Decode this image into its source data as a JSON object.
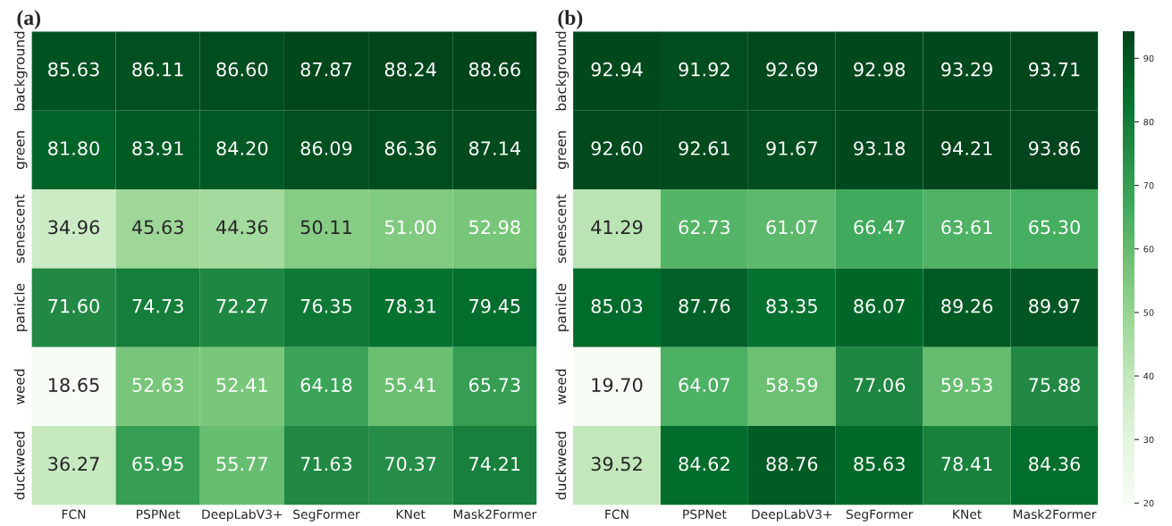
{
  "chart_data": [
    {
      "type": "heatmap",
      "title": "(a)",
      "categories": [
        "FCN",
        "PSPNet",
        "DeepLabV3+",
        "SegFormer",
        "KNet",
        "Mask2Former"
      ],
      "y_categories": [
        "background",
        "green",
        "senescent",
        "panicle",
        "weed",
        "duckweed"
      ],
      "cells": [
        [
          85.63,
          86.11,
          86.6,
          87.87,
          88.24,
          88.66
        ],
        [
          81.8,
          83.91,
          84.2,
          86.09,
          86.36,
          87.14
        ],
        [
          34.96,
          45.63,
          44.36,
          50.11,
          51.0,
          52.98
        ],
        [
          71.6,
          74.73,
          72.27,
          76.35,
          78.31,
          79.45
        ],
        [
          18.65,
          52.63,
          52.41,
          64.18,
          55.41,
          65.73
        ],
        [
          36.27,
          65.95,
          55.77,
          71.63,
          70.37,
          74.21
        ]
      ],
      "cell_labels": [
        [
          "85.63",
          "86.11",
          "86.60",
          "87.87",
          "88.24",
          "88.66"
        ],
        [
          "81.80",
          "83.91",
          "84.20",
          "86.09",
          "86.36",
          "87.14"
        ],
        [
          "34.96",
          "45.63",
          "44.36",
          "50.11",
          "51.00",
          "52.98"
        ],
        [
          "71.60",
          "74.73",
          "72.27",
          "76.35",
          "78.31",
          "79.45"
        ],
        [
          "18.65",
          "52.63",
          "52.41",
          "64.18",
          "55.41",
          "65.73"
        ],
        [
          "36.27",
          "65.95",
          "55.77",
          "71.63",
          "70.37",
          "74.21"
        ]
      ]
    },
    {
      "type": "heatmap",
      "title": "(b)",
      "categories": [
        "FCN",
        "PSPNet",
        "DeepLabV3+",
        "SegFormer",
        "KNet",
        "Mask2Former"
      ],
      "y_categories": [
        "background",
        "green",
        "senescent",
        "panicle",
        "weed",
        "duckweed"
      ],
      "cells": [
        [
          92.94,
          91.92,
          92.69,
          92.98,
          93.29,
          93.71
        ],
        [
          92.6,
          92.61,
          91.67,
          93.18,
          94.21,
          93.86
        ],
        [
          41.29,
          62.73,
          61.07,
          66.47,
          63.61,
          65.3
        ],
        [
          85.03,
          87.76,
          83.35,
          86.07,
          89.26,
          89.97
        ],
        [
          19.7,
          64.07,
          58.59,
          77.06,
          59.53,
          75.88
        ],
        [
          39.52,
          84.62,
          88.76,
          85.63,
          78.41,
          84.36
        ]
      ],
      "cell_labels": [
        [
          "92.94",
          "91.92",
          "92.69",
          "92.98",
          "93.29",
          "93.71"
        ],
        [
          "92.60",
          "92.61",
          "91.67",
          "93.18",
          "94.21",
          "93.86"
        ],
        [
          "41.29",
          "62.73",
          "61.07",
          "66.47",
          "63.61",
          "65.30"
        ],
        [
          "85.03",
          "87.76",
          "83.35",
          "86.07",
          "89.26",
          "89.97"
        ],
        [
          "19.70",
          "64.07",
          "58.59",
          "77.06",
          "59.53",
          "75.88"
        ],
        [
          "39.52",
          "84.62",
          "88.76",
          "85.63",
          "78.41",
          "84.36"
        ]
      ],
      "clim": [
        19.7,
        94.21
      ],
      "cticks": [
        20,
        30,
        40,
        50,
        60,
        70,
        80,
        90
      ]
    }
  ]
}
